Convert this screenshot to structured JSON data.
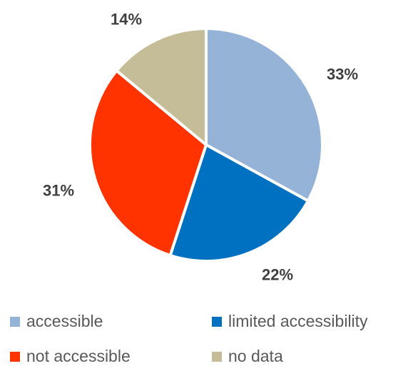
{
  "chart_data": {
    "type": "pie",
    "title": "",
    "slices": [
      {
        "name": "accessible",
        "value": 33,
        "label": "33%",
        "color": "#95B3D7"
      },
      {
        "name": "limited accessibility",
        "value": 22,
        "label": "22%",
        "color": "#0070C0"
      },
      {
        "name": "not accessible",
        "value": 31,
        "label": "31%",
        "color": "#FF3300"
      },
      {
        "name": "no data",
        "value": 14,
        "label": "14%",
        "color": "#C4BD97"
      }
    ],
    "start_angle": "12 o'clock",
    "direction": "clockwise",
    "legend_position": "bottom"
  }
}
